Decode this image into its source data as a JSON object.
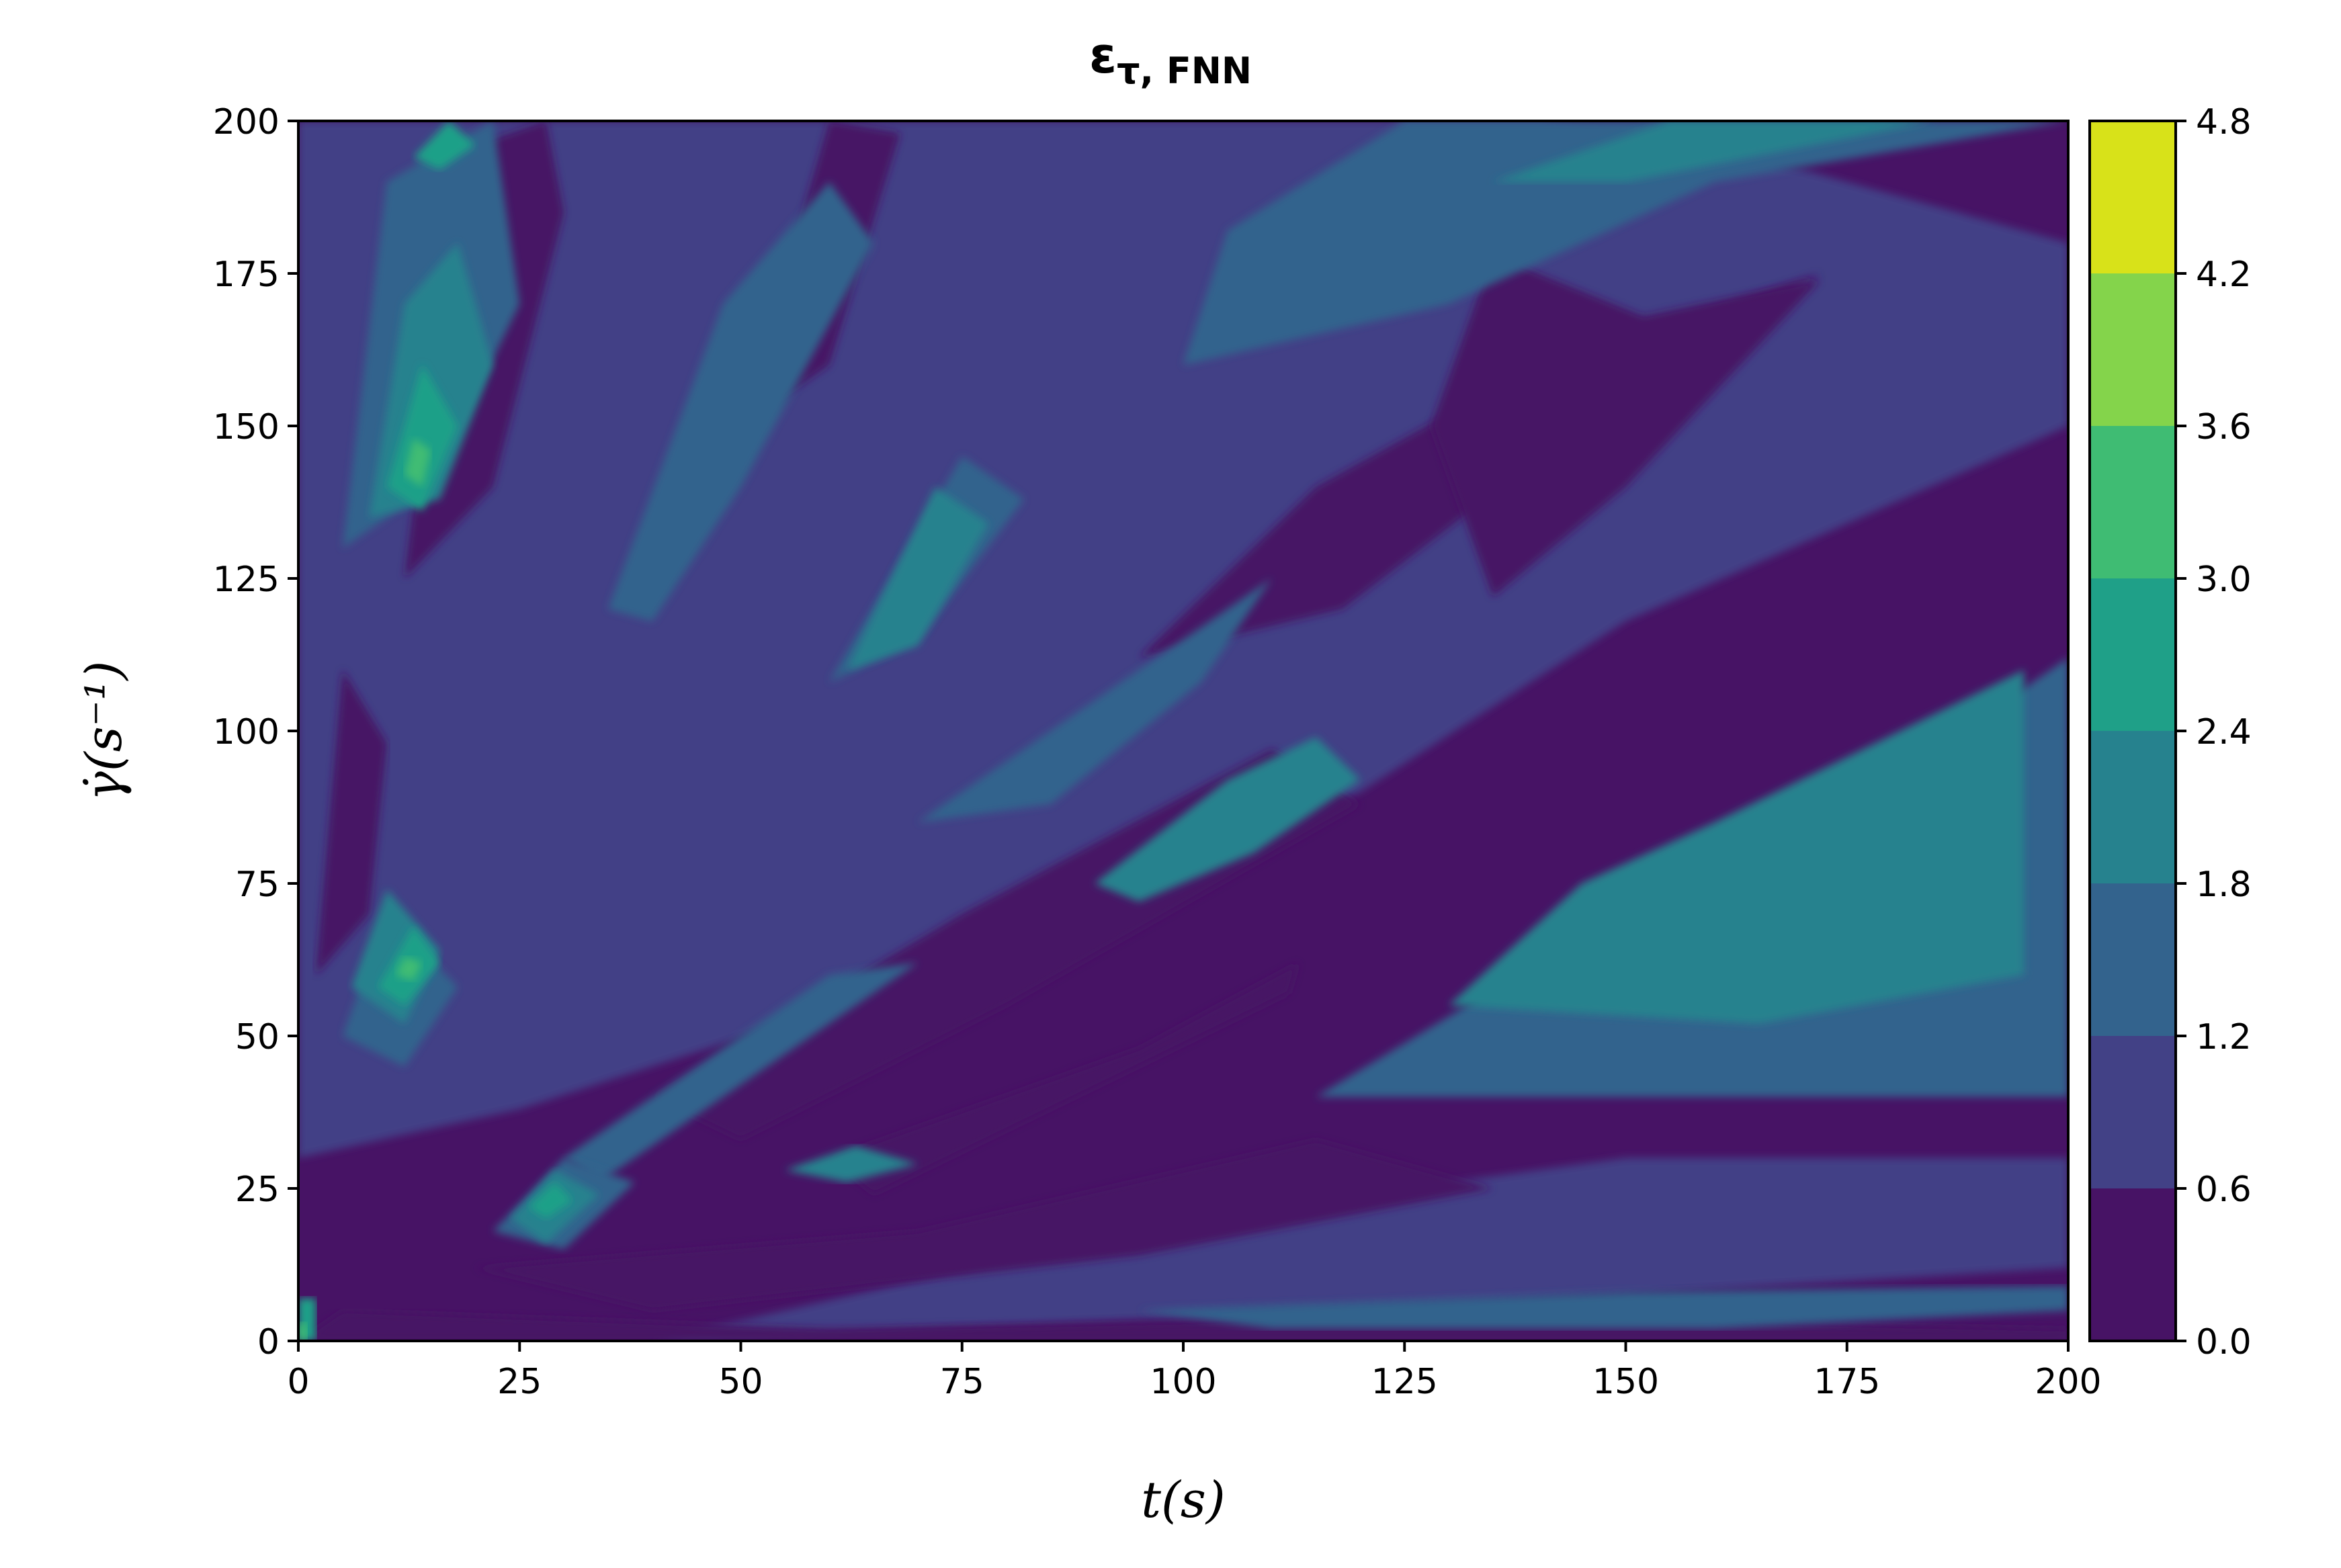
{
  "chart_data": {
    "type": "heatmap",
    "subtype": "filled-contour",
    "title": {
      "main": "ε",
      "subscript": "τ, FNN"
    },
    "xlabel": "t(s)",
    "ylabel": "γ̇(s⁻¹)",
    "xlim": [
      0,
      200
    ],
    "ylim": [
      0,
      200
    ],
    "x_ticks": [
      "0",
      "25",
      "50",
      "75",
      "100",
      "125",
      "150",
      "175",
      "200"
    ],
    "y_ticks": [
      "0",
      "25",
      "50",
      "75",
      "100",
      "125",
      "150",
      "175",
      "200"
    ],
    "colormap": "viridis",
    "colorbar": {
      "levels": [
        0.0,
        0.6,
        1.2,
        1.8,
        2.4,
        3.0,
        3.6,
        4.2,
        4.8
      ],
      "tick_labels": [
        "0.0",
        "0.6",
        "1.2",
        "1.8",
        "2.4",
        "3.0",
        "3.6",
        "4.2",
        "4.8"
      ],
      "colors": [
        "#471365",
        "#424186",
        "#33638d",
        "#26828e",
        "#1fa088",
        "#3fbc73",
        "#84d44b",
        "#d8e219"
      ]
    },
    "grid": false,
    "regions": [
      {
        "level": 1,
        "polygon": [
          [
            0,
            30
          ],
          [
            25,
            38
          ],
          [
            55,
            52
          ],
          [
            90,
            70
          ],
          [
            120,
            90
          ],
          [
            150,
            118
          ],
          [
            200,
            150
          ],
          [
            200,
            180
          ],
          [
            170,
            192
          ],
          [
            140,
            200
          ],
          [
            0,
            200
          ]
        ]
      },
      {
        "level": 1,
        "polygon": [
          [
            40,
            0
          ],
          [
            120,
            5
          ],
          [
            200,
            12
          ],
          [
            200,
            30
          ],
          [
            150,
            30
          ],
          [
            100,
            20
          ]
        ]
      },
      {
        "level": 0,
        "polygon": [
          [
            5,
            5
          ],
          [
            60,
            2
          ],
          [
            130,
            4
          ],
          [
            200,
            2
          ],
          [
            200,
            0
          ],
          [
            0,
            0
          ]
        ]
      },
      {
        "level": 0,
        "polygon": [
          [
            20,
            12
          ],
          [
            70,
            18
          ],
          [
            115,
            33
          ],
          [
            135,
            25
          ],
          [
            95,
            14
          ],
          [
            40,
            5
          ]
        ]
      },
      {
        "level": 0,
        "polygon": [
          [
            40,
            40
          ],
          [
            75,
            70
          ],
          [
            110,
            97
          ],
          [
            120,
            88
          ],
          [
            80,
            55
          ],
          [
            50,
            33
          ]
        ]
      },
      {
        "level": 0,
        "polygon": [
          [
            60,
            30
          ],
          [
            95,
            48
          ],
          [
            113,
            62
          ],
          [
            112,
            57
          ],
          [
            85,
            38
          ],
          [
            65,
            24
          ]
        ]
      },
      {
        "level": 0,
        "polygon": [
          [
            95,
            112
          ],
          [
            115,
            140
          ],
          [
            140,
            160
          ],
          [
            172,
            175
          ],
          [
            145,
            150
          ],
          [
            118,
            120
          ]
        ]
      },
      {
        "level": 0,
        "polygon": [
          [
            128,
            150
          ],
          [
            135,
            178
          ],
          [
            152,
            168
          ],
          [
            172,
            174
          ],
          [
            150,
            140
          ],
          [
            135,
            122
          ]
        ]
      },
      {
        "level": 0,
        "polygon": [
          [
            12,
            125
          ],
          [
            18,
            195
          ],
          [
            28,
            200
          ],
          [
            30,
            185
          ],
          [
            22,
            140
          ]
        ]
      },
      {
        "level": 0,
        "polygon": [
          [
            50,
            150
          ],
          [
            60,
            200
          ],
          [
            68,
            198
          ],
          [
            60,
            160
          ]
        ]
      },
      {
        "level": 0,
        "polygon": [
          [
            2,
            60
          ],
          [
            5,
            110
          ],
          [
            10,
            98
          ],
          [
            8,
            70
          ]
        ]
      },
      {
        "level": 0,
        "polygon": [
          [
            195,
            50
          ],
          [
            200,
            50
          ],
          [
            200,
            100
          ],
          [
            195,
            95
          ]
        ]
      },
      {
        "level": 2,
        "polygon": [
          [
            95,
            5
          ],
          [
            150,
            8
          ],
          [
            200,
            9
          ],
          [
            200,
            5
          ],
          [
            160,
            2
          ],
          [
            110,
            2
          ]
        ]
      },
      {
        "level": 2,
        "polygon": [
          [
            115,
            40
          ],
          [
            140,
            62
          ],
          [
            170,
            82
          ],
          [
            200,
            112
          ],
          [
            200,
            40
          ],
          [
            160,
            40
          ]
        ]
      },
      {
        "level": 2,
        "polygon": [
          [
            100,
            160
          ],
          [
            130,
            170
          ],
          [
            160,
            190
          ],
          [
            200,
            200
          ],
          [
            125,
            200
          ],
          [
            105,
            182
          ]
        ]
      },
      {
        "level": 2,
        "polygon": [
          [
            35,
            120
          ],
          [
            48,
            170
          ],
          [
            60,
            190
          ],
          [
            65,
            180
          ],
          [
            50,
            140
          ],
          [
            40,
            118
          ]
        ]
      },
      {
        "level": 2,
        "polygon": [
          [
            30,
            30
          ],
          [
            45,
            45
          ],
          [
            60,
            60
          ],
          [
            70,
            62
          ],
          [
            50,
            42
          ],
          [
            34,
            26
          ]
        ]
      },
      {
        "level": 2,
        "polygon": [
          [
            70,
            85
          ],
          [
            95,
            110
          ],
          [
            110,
            125
          ],
          [
            102,
            108
          ],
          [
            85,
            88
          ]
        ]
      },
      {
        "level": 2,
        "polygon": [
          [
            60,
            108
          ],
          [
            75,
            145
          ],
          [
            82,
            138
          ],
          [
            70,
            115
          ]
        ]
      },
      {
        "level": 2,
        "polygon": [
          [
            5,
            130
          ],
          [
            10,
            190
          ],
          [
            22,
            200
          ],
          [
            25,
            170
          ],
          [
            15,
            140
          ]
        ]
      },
      {
        "level": 2,
        "polygon": [
          [
            5,
            50
          ],
          [
            10,
            70
          ],
          [
            18,
            58
          ],
          [
            12,
            45
          ]
        ]
      },
      {
        "level": 2,
        "polygon": [
          [
            22,
            18
          ],
          [
            30,
            30
          ],
          [
            38,
            26
          ],
          [
            30,
            15
          ]
        ]
      },
      {
        "level": 3,
        "polygon": [
          [
            130,
            55
          ],
          [
            145,
            75
          ],
          [
            160,
            85
          ],
          [
            195,
            110
          ],
          [
            195,
            60
          ],
          [
            165,
            52
          ]
        ]
      },
      {
        "level": 3,
        "polygon": [
          [
            90,
            75
          ],
          [
            105,
            92
          ],
          [
            115,
            99
          ],
          [
            120,
            92
          ],
          [
            108,
            80
          ],
          [
            95,
            72
          ]
        ]
      },
      {
        "level": 3,
        "polygon": [
          [
            135,
            190
          ],
          [
            155,
            200
          ],
          [
            185,
            200
          ],
          [
            150,
            190
          ]
        ]
      },
      {
        "level": 3,
        "polygon": [
          [
            8,
            135
          ],
          [
            12,
            170
          ],
          [
            18,
            180
          ],
          [
            22,
            160
          ],
          [
            16,
            138
          ]
        ]
      },
      {
        "level": 3,
        "polygon": [
          [
            6,
            58
          ],
          [
            10,
            74
          ],
          [
            16,
            64
          ],
          [
            12,
            52
          ]
        ]
      },
      {
        "level": 3,
        "polygon": [
          [
            24,
            20
          ],
          [
            29,
            28
          ],
          [
            34,
            24
          ],
          [
            28,
            16
          ]
        ]
      },
      {
        "level": 3,
        "polygon": [
          [
            62,
            110
          ],
          [
            72,
            140
          ],
          [
            78,
            134
          ],
          [
            70,
            114
          ]
        ]
      },
      {
        "level": 3,
        "polygon": [
          [
            55,
            28
          ],
          [
            63,
            32
          ],
          [
            70,
            29
          ],
          [
            62,
            26
          ]
        ]
      },
      {
        "level": 4,
        "polygon": [
          [
            10,
            140
          ],
          [
            14,
            160
          ],
          [
            18,
            150
          ],
          [
            14,
            136
          ]
        ]
      },
      {
        "level": 4,
        "polygon": [
          [
            9,
            58
          ],
          [
            13,
            68
          ],
          [
            16,
            62
          ],
          [
            12,
            55
          ]
        ]
      },
      {
        "level": 4,
        "polygon": [
          [
            13,
            194
          ],
          [
            17,
            200
          ],
          [
            20,
            196
          ],
          [
            16,
            192
          ]
        ]
      },
      {
        "level": 4,
        "polygon": [
          [
            26,
            22
          ],
          [
            29,
            26
          ],
          [
            31,
            23
          ],
          [
            28,
            20
          ]
        ]
      },
      {
        "level": 4,
        "polygon": [
          [
            0,
            0
          ],
          [
            2,
            0
          ],
          [
            2,
            7
          ],
          [
            0,
            7
          ]
        ]
      },
      {
        "level": 5,
        "polygon": [
          [
            12,
            142
          ],
          [
            13,
            148
          ],
          [
            15,
            146
          ],
          [
            14,
            140
          ]
        ]
      },
      {
        "level": 5,
        "polygon": [
          [
            11,
            60
          ],
          [
            12,
            63
          ],
          [
            14,
            62
          ],
          [
            13,
            59
          ]
        ]
      },
      {
        "level": 5,
        "polygon": [
          [
            0,
            0
          ],
          [
            1,
            0
          ],
          [
            1,
            3
          ],
          [
            0,
            3
          ]
        ]
      }
    ]
  }
}
